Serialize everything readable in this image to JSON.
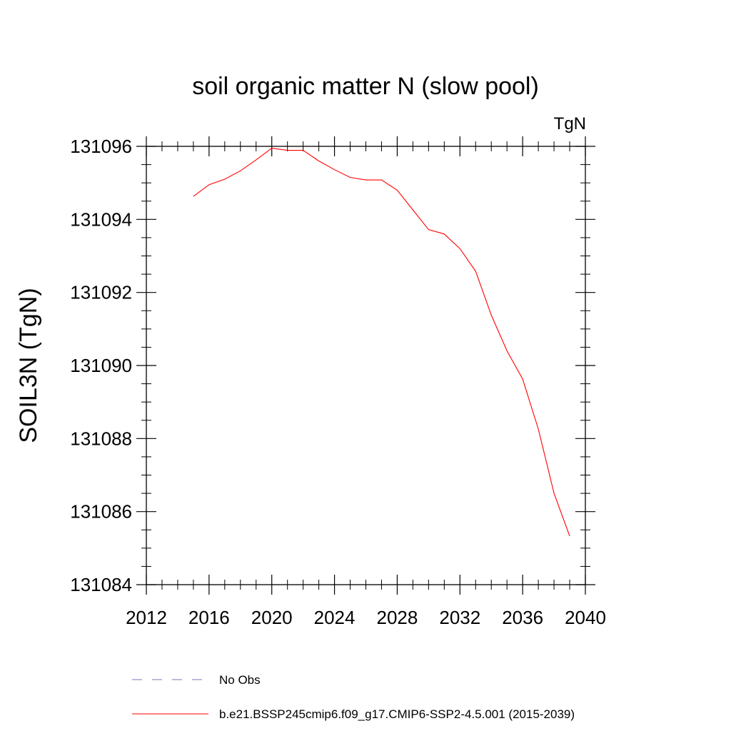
{
  "chart_data": {
    "type": "line",
    "title": "soil organic matter N (slow pool)",
    "units_label": "TgN",
    "ylabel": "SOIL3N  (TgN)",
    "xlabel": "",
    "xlim": [
      2012,
      2040
    ],
    "ylim": [
      131084,
      131096
    ],
    "x_ticks": [
      2012,
      2016,
      2020,
      2024,
      2028,
      2032,
      2036,
      2040
    ],
    "x_tick_labels": [
      "2012",
      "2016",
      "2020",
      "2024",
      "2028",
      "2032",
      "2036",
      "2040"
    ],
    "y_ticks": [
      131084,
      131086,
      131088,
      131090,
      131092,
      131094,
      131096
    ],
    "y_tick_labels": [
      "131084",
      "131086",
      "131088",
      "131090",
      "131092",
      "131094",
      "131096"
    ],
    "x_minor_step": 1,
    "y_minor_step": 0.5,
    "grid": false,
    "legend_position": "bottom",
    "series": [
      {
        "name": "b.e21.BSSP245cmip6.f09_g17.CMIP6-SSP2-4.5.001 (2015-2039)",
        "color": "#ff0000",
        "line_style": "solid",
        "x": [
          2015,
          2016,
          2017,
          2018,
          2019,
          2020,
          2021,
          2022,
          2023,
          2024,
          2025,
          2026,
          2027,
          2028,
          2029,
          2030,
          2031,
          2032,
          2033,
          2034,
          2035,
          2036,
          2037,
          2038,
          2039
        ],
        "values": [
          131094.63,
          131094.95,
          131095.1,
          131095.33,
          131095.63,
          131095.95,
          131095.89,
          131095.89,
          131095.6,
          131095.36,
          131095.15,
          131095.08,
          131095.08,
          131094.8,
          131094.26,
          131093.72,
          131093.6,
          131093.2,
          131092.58,
          131091.38,
          131090.4,
          131089.63,
          131088.26,
          131086.5,
          131085.33
        ]
      }
    ],
    "legend": [
      {
        "label": "No Obs",
        "color": "#7777bb",
        "line_style": "dashed"
      },
      {
        "label": "b.e21.BSSP245cmip6.f09_g17.CMIP6-SSP2-4.5.001 (2015-2039)",
        "color": "#ff0000",
        "line_style": "solid"
      }
    ]
  }
}
